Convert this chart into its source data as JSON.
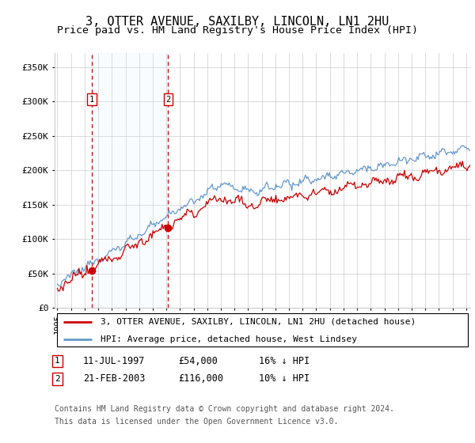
{
  "title": "3, OTTER AVENUE, SAXILBY, LINCOLN, LN1 2HU",
  "subtitle": "Price paid vs. HM Land Registry's House Price Index (HPI)",
  "ylabel_ticks": [
    "£0",
    "£50K",
    "£100K",
    "£150K",
    "£200K",
    "£250K",
    "£300K",
    "£350K"
  ],
  "ytick_values": [
    0,
    50000,
    100000,
    150000,
    200000,
    250000,
    300000,
    350000
  ],
  "ylim": [
    0,
    370000
  ],
  "xlim_start": 1994.8,
  "xlim_end": 2025.3,
  "sale1_date": 1997.53,
  "sale1_price": 54000,
  "sale2_date": 2003.13,
  "sale2_price": 116000,
  "legend_house_label": "3, OTTER AVENUE, SAXILBY, LINCOLN, LN1 2HU (detached house)",
  "legend_hpi_label": "HPI: Average price, detached house, West Lindsey",
  "footnote1": "Contains HM Land Registry data © Crown copyright and database right 2024.",
  "footnote2": "This data is licensed under the Open Government Licence v3.0.",
  "house_color": "#cc0000",
  "hpi_color": "#6699cc",
  "shade_color": "#ddeeff",
  "grid_color": "#cccccc",
  "background_color": "#ffffff",
  "title_fontsize": 11,
  "subtitle_fontsize": 9.5,
  "tick_fontsize": 8,
  "legend_fontsize": 8,
  "table_fontsize": 8.5,
  "footnote_fontsize": 7
}
